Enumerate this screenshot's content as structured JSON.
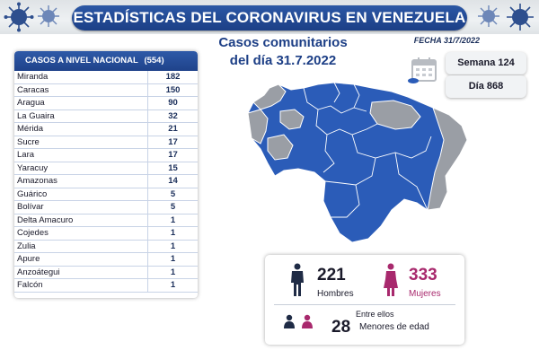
{
  "header": {
    "title": "ESTADÍSTICAS DEL CORONAVIRUS EN VENEZUELA",
    "fecha": "FECHA 31/7/2022"
  },
  "table": {
    "header_label": "CASOS A NIVEL NACIONAL",
    "header_total": "(554)",
    "rows": [
      {
        "state": "Miranda",
        "cases": "182"
      },
      {
        "state": "Caracas",
        "cases": "150"
      },
      {
        "state": "Aragua",
        "cases": "90"
      },
      {
        "state": "La Guaira",
        "cases": "32"
      },
      {
        "state": "Mérida",
        "cases": "21"
      },
      {
        "state": "Sucre",
        "cases": "17"
      },
      {
        "state": "Lara",
        "cases": "17"
      },
      {
        "state": "Yaracuy",
        "cases": "15"
      },
      {
        "state": "Amazonas",
        "cases": "14"
      },
      {
        "state": "Guárico",
        "cases": "5"
      },
      {
        "state": "Bolívar",
        "cases": "5"
      },
      {
        "state": "Delta Amacuro",
        "cases": "1"
      },
      {
        "state": "Cojedes",
        "cases": "1"
      },
      {
        "state": "Zulia",
        "cases": "1"
      },
      {
        "state": "Apure",
        "cases": "1"
      },
      {
        "state": "Anzoátegui",
        "cases": "1"
      },
      {
        "state": "Falcón",
        "cases": "1"
      }
    ]
  },
  "casos": {
    "line1": "Casos comunitarios",
    "line2": "del día 31.7.2022"
  },
  "semana": "Semana 124",
  "dia": "Día 868",
  "stats": {
    "hombres_count": "221",
    "hombres_label": "Hombres",
    "mujeres_count": "333",
    "mujeres_label": "Mujeres",
    "menores_prefix": "Entre ellos",
    "menores_count": "28",
    "menores_label": "Menores de edad"
  },
  "colors": {
    "primary_blue": "#1d3f86",
    "map_blue": "#2b5cb8",
    "map_gray": "#9a9ea5",
    "mujeres_accent": "#a8296d",
    "hombres_icon": "#1f2b45"
  },
  "icons": {
    "virus": "coronavirus-icon",
    "calendar": "calendar-icon",
    "man": "man-icon",
    "woman": "woman-icon"
  }
}
